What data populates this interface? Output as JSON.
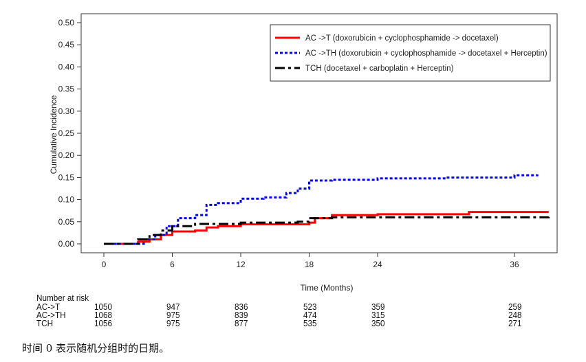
{
  "chart_data": {
    "type": "line",
    "xlabel": "Time (Months)",
    "ylabel": "Cumulative Incidence",
    "xlim": [
      0,
      39
    ],
    "ylim": [
      0,
      0.5
    ],
    "xticks": [
      0,
      6,
      12,
      18,
      24,
      36
    ],
    "yticks": [
      "0.00",
      "0.05",
      "0.10",
      "0.15",
      "0.20",
      "0.25",
      "0.30",
      "0.35",
      "0.40",
      "0.45",
      "0.50"
    ],
    "legend_position": "top-right",
    "series": [
      {
        "name": "AC ->T (doxorubicin + cyclophosphamide -> docetaxel)",
        "color": "#ff0000",
        "style": "solid",
        "x": [
          0,
          2.8,
          3,
          4,
          5,
          6,
          8,
          9,
          10,
          12,
          18,
          18.5,
          20,
          24,
          32,
          39
        ],
        "y": [
          0,
          0,
          0.005,
          0.01,
          0.02,
          0.028,
          0.03,
          0.037,
          0.04,
          0.044,
          0.048,
          0.058,
          0.065,
          0.067,
          0.072,
          0.072
        ]
      },
      {
        "name": "AC ->TH (doxorubicin + cyclophosphamide -> docetaxel + Herceptin)",
        "color": "#0000ff",
        "style": "dotted",
        "x": [
          0,
          2.9,
          3.5,
          4.5,
          5.5,
          6.5,
          8,
          9,
          10,
          12,
          14,
          16,
          17,
          18,
          20,
          24,
          30,
          36,
          38
        ],
        "y": [
          0,
          0,
          0.01,
          0.02,
          0.04,
          0.058,
          0.065,
          0.088,
          0.092,
          0.102,
          0.105,
          0.115,
          0.125,
          0.143,
          0.145,
          0.148,
          0.15,
          0.155,
          0.157
        ]
      },
      {
        "name": "TCH (docetaxel + carboplatin + Herceptin)",
        "color": "#000000",
        "style": "dashdot",
        "x": [
          0,
          2.7,
          3,
          4,
          5,
          6,
          8,
          12,
          17,
          18,
          20,
          39
        ],
        "y": [
          0,
          0,
          0.01,
          0.02,
          0.03,
          0.04,
          0.045,
          0.048,
          0.05,
          0.058,
          0.06,
          0.062
        ]
      }
    ]
  },
  "risk_table": {
    "title": "Number at risk",
    "months": [
      0,
      6,
      12,
      18,
      24,
      36
    ],
    "rows": [
      {
        "label": "AC->T",
        "values": [
          "1050",
          "947",
          "836",
          "523",
          "359",
          "259"
        ]
      },
      {
        "label": "AC->TH",
        "values": [
          "1068",
          "975",
          "839",
          "474",
          "315",
          "248"
        ]
      },
      {
        "label": "TCH",
        "values": [
          "1056",
          "975",
          "877",
          "535",
          "350",
          "271"
        ]
      }
    ]
  },
  "caption": "时间 0 表示随机分组时的日期。"
}
